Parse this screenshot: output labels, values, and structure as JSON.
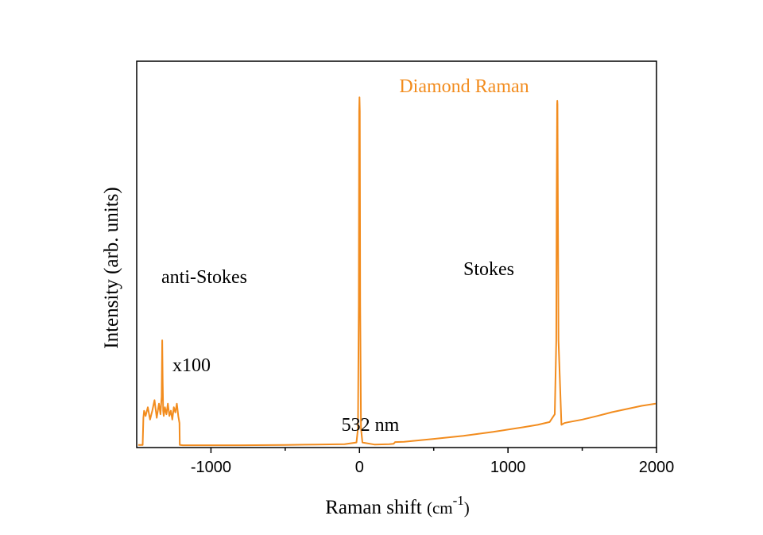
{
  "chart_data": {
    "type": "line",
    "xlabel": "Raman shift",
    "xlabel_unit_prefix": "(cm",
    "xlabel_unit_exp": "-1",
    "xlabel_unit_suffix": ")",
    "ylabel": "Intensity (arb. units)",
    "xlim": [
      -1500,
      2000
    ],
    "ylim": [
      0,
      1
    ],
    "x_ticks": [
      -1000,
      0,
      1000,
      2000
    ],
    "x_minor_ticks": [
      -500,
      500,
      1500
    ],
    "x_tick_labels": [
      "-1000",
      "0",
      "1000",
      "2000"
    ],
    "grid": false,
    "series": [
      {
        "color": "#f28c1e",
        "x": [
          -1490,
          -1460,
          -1455,
          -1450,
          -1440,
          -1425,
          -1410,
          -1395,
          -1380,
          -1365,
          -1350,
          -1340,
          -1332,
          -1328,
          -1325,
          -1322,
          -1318,
          -1310,
          -1300,
          -1290,
          -1280,
          -1270,
          -1260,
          -1250,
          -1240,
          -1230,
          -1220,
          -1212,
          -1210,
          -1205,
          -1190,
          -1000,
          -800,
          -500,
          -300,
          -100,
          -20,
          -10,
          -5,
          -2,
          0,
          2,
          5,
          10,
          20,
          100,
          200,
          230,
          240,
          300,
          500,
          700,
          900,
          1100,
          1200,
          1280,
          1315,
          1325,
          1328,
          1331,
          1332,
          1333,
          1336,
          1340,
          1360,
          1380,
          1400,
          1500,
          1600,
          1700,
          1800,
          1900,
          2000
        ],
        "y": [
          0.003,
          0.003,
          0.08,
          0.1,
          0.085,
          0.11,
          0.075,
          0.1,
          0.13,
          0.08,
          0.12,
          0.09,
          0.14,
          0.3,
          0.18,
          0.1,
          0.085,
          0.11,
          0.09,
          0.12,
          0.085,
          0.1,
          0.075,
          0.11,
          0.095,
          0.12,
          0.085,
          0.065,
          0.003,
          0.003,
          0.002,
          0.002,
          0.002,
          0.003,
          0.004,
          0.005,
          0.01,
          0.05,
          0.4,
          0.95,
          0.99,
          0.95,
          0.4,
          0.05,
          0.01,
          0.004,
          0.005,
          0.006,
          0.011,
          0.012,
          0.02,
          0.029,
          0.04,
          0.053,
          0.06,
          0.068,
          0.09,
          0.3,
          0.7,
          0.97,
          0.98,
          0.97,
          0.7,
          0.3,
          0.06,
          0.065,
          0.067,
          0.075,
          0.085,
          0.096,
          0.105,
          0.114,
          0.12
        ]
      }
    ],
    "annotations": [
      {
        "text": "Diamond Raman",
        "color": "#f28c1e"
      },
      {
        "text": "anti-Stokes",
        "color": "#000000"
      },
      {
        "text": "Stokes",
        "color": "#000000"
      },
      {
        "text": "x100",
        "color": "#000000"
      },
      {
        "text": "532 nm",
        "color": "#000000"
      }
    ]
  }
}
